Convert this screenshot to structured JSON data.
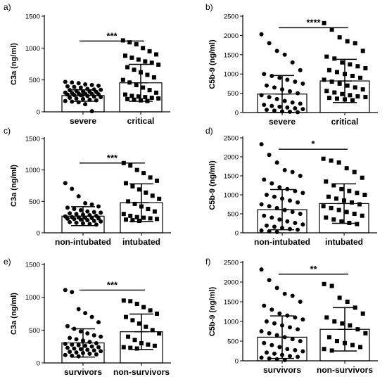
{
  "chart_data": [
    {
      "panel": "a)",
      "type": "scatter",
      "ylabel": "C3a (ng/ml)",
      "ylim": [
        0,
        1500
      ],
      "yticks": [
        0,
        500,
        1000,
        1500
      ],
      "categories": [
        "severe",
        "critical"
      ],
      "series": [
        {
          "category": "severe",
          "marker": "circle",
          "mean": 255,
          "sd": 90,
          "values": [
            470,
            460,
            450,
            430,
            420,
            410,
            400,
            390,
            380,
            360,
            350,
            345,
            340,
            330,
            320,
            315,
            310,
            300,
            295,
            290,
            285,
            280,
            275,
            270,
            265,
            260,
            250,
            240,
            230,
            220,
            210,
            200,
            190,
            180,
            170,
            160,
            150,
            120,
            10
          ]
        },
        {
          "category": "critical",
          "marker": "square",
          "mean": 455,
          "sd": 290,
          "values": [
            1120,
            1090,
            1060,
            1000,
            950,
            900,
            880,
            850,
            820,
            790,
            770,
            740,
            700,
            660,
            620,
            580,
            540,
            500,
            460,
            420,
            380,
            340,
            300,
            270,
            250,
            240,
            230,
            220,
            210,
            200,
            190,
            180,
            170
          ]
        }
      ],
      "significance": "***"
    },
    {
      "panel": "b)",
      "type": "scatter",
      "ylabel": "C5b-9 (ng/ml)",
      "ylim": [
        0,
        2500
      ],
      "yticks": [
        0,
        500,
        1000,
        1500,
        2000,
        2500
      ],
      "categories": [
        "severe",
        "critical"
      ],
      "series": [
        {
          "category": "severe",
          "marker": "circle",
          "mean": 480,
          "sd": 480,
          "values": [
            2030,
            1800,
            1600,
            1500,
            1300,
            1100,
            1000,
            950,
            900,
            850,
            800,
            750,
            700,
            650,
            600,
            550,
            500,
            450,
            400,
            350,
            300,
            260,
            230,
            200,
            170,
            150,
            130,
            110,
            90,
            70,
            50,
            30,
            20,
            10
          ]
        },
        {
          "category": "critical",
          "marker": "square",
          "mean": 820,
          "sd": 560,
          "values": [
            2320,
            2150,
            1950,
            1850,
            1800,
            1600,
            1450,
            1400,
            1300,
            1250,
            1200,
            1150,
            1100,
            1050,
            1000,
            950,
            900,
            850,
            800,
            750,
            700,
            650,
            600,
            560,
            520,
            480,
            450,
            420,
            400,
            380,
            360,
            340,
            320
          ]
        }
      ],
      "significance": "****"
    },
    {
      "panel": "c)",
      "type": "scatter",
      "ylabel": "C3a (ng/ml)",
      "ylim": [
        0,
        1500
      ],
      "yticks": [
        0,
        500,
        1000,
        1500
      ],
      "categories": [
        "non-intubated",
        "intubated"
      ],
      "series": [
        {
          "category": "non-intubated",
          "marker": "circle",
          "mean": 265,
          "sd": 150,
          "values": [
            790,
            700,
            580,
            470,
            450,
            420,
            400,
            380,
            360,
            340,
            330,
            320,
            310,
            300,
            290,
            280,
            270,
            260,
            250,
            245,
            240,
            235,
            230,
            225,
            220,
            210,
            200,
            190,
            180,
            170,
            160,
            150,
            140,
            130
          ]
        },
        {
          "category": "intubated",
          "marker": "square",
          "mean": 480,
          "sd": 300,
          "values": [
            1110,
            1070,
            1000,
            950,
            880,
            830,
            790,
            740,
            690,
            640,
            590,
            540,
            500,
            460,
            420,
            380,
            340,
            300,
            270,
            250,
            240,
            230,
            220,
            210,
            200,
            190
          ]
        }
      ],
      "significance": "***"
    },
    {
      "panel": "d)",
      "type": "scatter",
      "ylabel": "C5b-9 (ng/ml)",
      "ylim": [
        0,
        2500
      ],
      "yticks": [
        0,
        500,
        1000,
        1500,
        2000,
        2500
      ],
      "categories": [
        "non-intubated",
        "intubated"
      ],
      "series": [
        {
          "category": "non-intubated",
          "marker": "circle",
          "mean": 610,
          "sd": 530,
          "values": [
            2330,
            2050,
            1850,
            1650,
            1600,
            1500,
            1400,
            1300,
            1200,
            1150,
            1100,
            1050,
            1000,
            950,
            900,
            850,
            800,
            750,
            700,
            650,
            600,
            550,
            500,
            450,
            400,
            350,
            300,
            260,
            220,
            190,
            160,
            130,
            100,
            80,
            60,
            40,
            20
          ]
        },
        {
          "category": "intubated",
          "marker": "square",
          "mean": 770,
          "sd": 520,
          "values": [
            1950,
            1900,
            1850,
            1700,
            1600,
            1450,
            1350,
            1250,
            1150,
            1100,
            1050,
            1000,
            950,
            900,
            850,
            800,
            750,
            700,
            650,
            600,
            550,
            500,
            450,
            400,
            350,
            300,
            260,
            230
          ]
        }
      ],
      "significance": "*"
    },
    {
      "panel": "e)",
      "type": "scatter",
      "ylabel": "C3a (ng/ml)",
      "ylim": [
        0,
        1500
      ],
      "yticks": [
        0,
        500,
        1000,
        1500
      ],
      "categories": [
        "survivors",
        "non-survivors"
      ],
      "series": [
        {
          "category": "survivors",
          "marker": "circle",
          "mean": 305,
          "sd": 215,
          "values": [
            1110,
            1080,
            820,
            760,
            700,
            620,
            560,
            520,
            480,
            450,
            420,
            400,
            380,
            360,
            340,
            320,
            300,
            290,
            280,
            270,
            260,
            250,
            240,
            230,
            220,
            210,
            200,
            190,
            180,
            170,
            160,
            150,
            140,
            130,
            120,
            110,
            100
          ]
        },
        {
          "category": "non-survivors",
          "marker": "square",
          "mean": 475,
          "sd": 270,
          "values": [
            950,
            940,
            900,
            850,
            800,
            750,
            700,
            650,
            600,
            550,
            500,
            450,
            400,
            350,
            300,
            280,
            260,
            240,
            230,
            220
          ]
        }
      ],
      "significance": "***"
    },
    {
      "panel": "f)",
      "type": "scatter",
      "ylabel": "C5b-9 (ng/ml)",
      "ylim": [
        0,
        2500
      ],
      "yticks": [
        0,
        500,
        1000,
        1500,
        2000,
        2500
      ],
      "categories": [
        "survivors",
        "non-survivors"
      ],
      "series": [
        {
          "category": "survivors",
          "marker": "circle",
          "mean": 600,
          "sd": 540,
          "values": [
            2320,
            2050,
            1850,
            1700,
            1650,
            1500,
            1400,
            1300,
            1200,
            1150,
            1100,
            1050,
            1000,
            950,
            900,
            850,
            800,
            750,
            700,
            650,
            600,
            550,
            500,
            450,
            400,
            350,
            300,
            270,
            240,
            210,
            180,
            150,
            120,
            100,
            80,
            60,
            40,
            20
          ]
        },
        {
          "category": "non-survivors",
          "marker": "square",
          "mean": 800,
          "sd": 550,
          "values": [
            1950,
            1900,
            1600,
            1500,
            1350,
            1200,
            1100,
            1000,
            950,
            900,
            800,
            700,
            600,
            500,
            450,
            400,
            350,
            300,
            260
          ]
        }
      ],
      "significance": "**"
    }
  ]
}
